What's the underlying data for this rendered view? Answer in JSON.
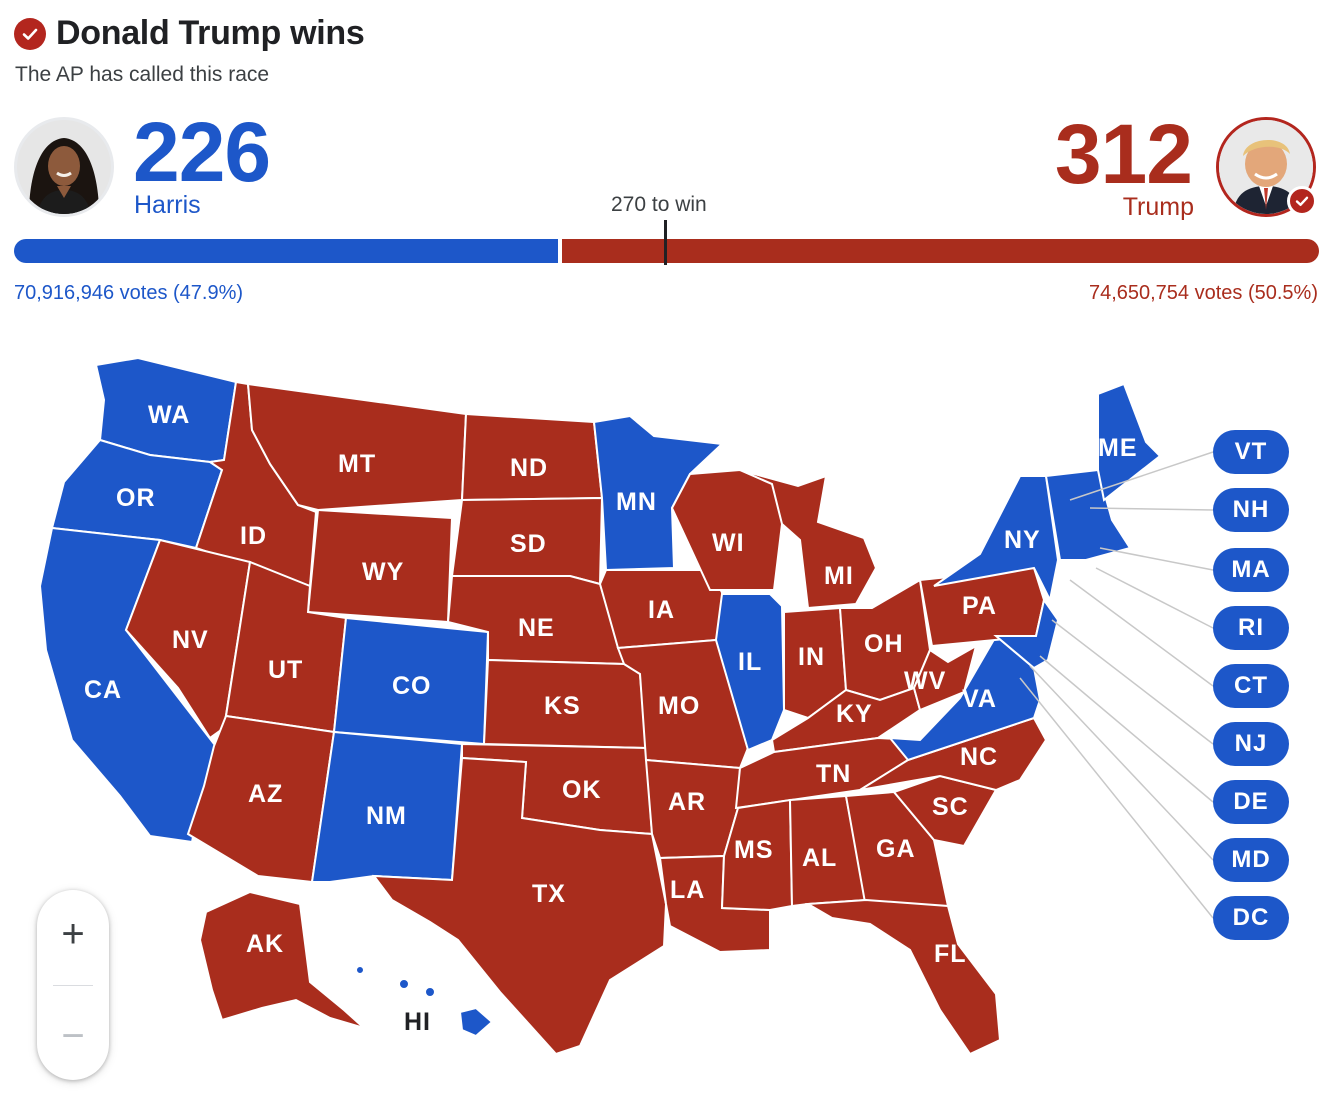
{
  "header": {
    "winner_headline": "Donald Trump wins",
    "call_status": "The AP has called this race"
  },
  "candidates": {
    "harris": {
      "name": "Harris",
      "electoral_votes": "226",
      "popular_votes": "70,916,946 votes (47.9%)",
      "color": "#1d57c9"
    },
    "trump": {
      "name": "Trump",
      "electoral_votes": "312",
      "popular_votes": "74,650,754 votes (50.5%)",
      "color": "#a92d1d",
      "winner": true
    }
  },
  "threshold": {
    "label": "270 to win",
    "value": 270,
    "total": 538
  },
  "map": {
    "state_labels": {
      "WA": "WA",
      "OR": "OR",
      "CA": "CA",
      "ID": "ID",
      "NV": "NV",
      "MT": "MT",
      "WY": "WY",
      "UT": "UT",
      "AZ": "AZ",
      "CO": "CO",
      "NM": "NM",
      "ND": "ND",
      "SD": "SD",
      "NE": "NE",
      "KS": "KS",
      "OK": "OK",
      "TX": "TX",
      "MN": "MN",
      "IA": "IA",
      "MO": "MO",
      "AR": "AR",
      "LA": "LA",
      "WI": "WI",
      "IL": "IL",
      "MI": "MI",
      "IN": "IN",
      "OH": "OH",
      "KY": "KY",
      "TN": "TN",
      "MS": "MS",
      "AL": "AL",
      "GA": "GA",
      "FL": "FL",
      "SC": "SC",
      "NC": "NC",
      "VA": "VA",
      "WV": "WV",
      "PA": "PA",
      "NY": "NY",
      "ME": "ME",
      "AK": "AK",
      "HI": "HI"
    },
    "small_states": [
      "VT",
      "NH",
      "MA",
      "RI",
      "CT",
      "NJ",
      "DE",
      "MD",
      "DC"
    ],
    "winners": {
      "WA": "harris",
      "OR": "harris",
      "CA": "harris",
      "CO": "harris",
      "NM": "harris",
      "MN": "harris",
      "IL": "harris",
      "VA": "harris",
      "NY": "harris",
      "ME": "harris",
      "HI": "harris",
      "VT": "harris",
      "NH": "harris",
      "MA": "harris",
      "RI": "harris",
      "CT": "harris",
      "NJ": "harris",
      "DE": "harris",
      "MD": "harris",
      "DC": "harris",
      "ID": "trump",
      "NV": "trump",
      "MT": "trump",
      "WY": "trump",
      "UT": "trump",
      "AZ": "trump",
      "ND": "trump",
      "SD": "trump",
      "NE": "trump",
      "KS": "trump",
      "OK": "trump",
      "TX": "trump",
      "IA": "trump",
      "MO": "trump",
      "AR": "trump",
      "LA": "trump",
      "WI": "trump",
      "MI": "trump",
      "IN": "trump",
      "OH": "trump",
      "KY": "trump",
      "TN": "trump",
      "MS": "trump",
      "AL": "trump",
      "GA": "trump",
      "FL": "trump",
      "SC": "trump",
      "NC": "trump",
      "WV": "trump",
      "PA": "trump",
      "AK": "trump"
    }
  },
  "zoom": {
    "in_label": "+",
    "out_label": "−"
  },
  "icons": {
    "headline_check": "check-circle-icon",
    "winner_badge": "check-badge-icon",
    "harris_photo": "harris-portrait",
    "trump_photo": "trump-portrait"
  }
}
